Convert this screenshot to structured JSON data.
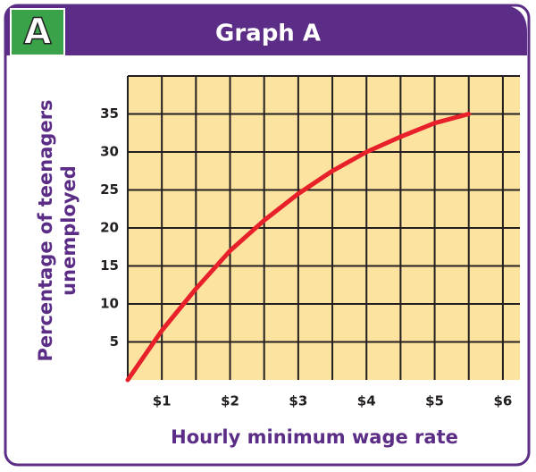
{
  "header": {
    "badge": "A"
  },
  "chart_data": {
    "type": "line",
    "title": "Graph A",
    "x_label": "Hourly minimum wage rate",
    "y_label": [
      "Percentage of teenagers",
      "unemployed"
    ],
    "x": [
      0.5,
      1,
      1.5,
      2,
      2.5,
      3,
      3.5,
      4,
      4.5,
      5,
      5.5
    ],
    "series": [
      {
        "color": "#e8202a",
        "values": [
          0,
          6.5,
          12,
          17,
          21,
          24.5,
          27.5,
          30,
          32,
          33.8,
          35
        ]
      }
    ],
    "xlim": [
      0.5,
      6.25
    ],
    "ylim": [
      0,
      40
    ],
    "xticks": [
      {
        "value": 1,
        "label": "$1"
      },
      {
        "value": 2,
        "label": "$2"
      },
      {
        "value": 3,
        "label": "$3"
      },
      {
        "value": 4,
        "label": "$4"
      },
      {
        "value": 5,
        "label": "$5"
      },
      {
        "value": 6,
        "label": "$6"
      }
    ],
    "xminor": [
      0.5,
      1.5,
      2.5,
      3.5,
      4.5,
      5.5
    ],
    "yticks": [
      5,
      10,
      15,
      20,
      25,
      30,
      35
    ],
    "yminor": [
      40
    ],
    "grid": true,
    "plot_color": "#fce3a0"
  }
}
